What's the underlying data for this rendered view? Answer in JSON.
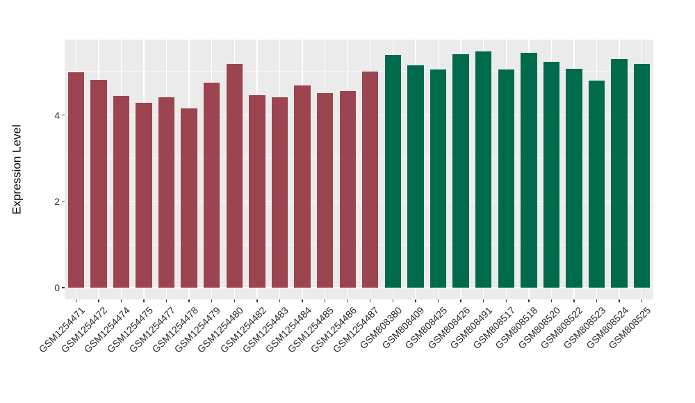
{
  "chart_data": {
    "type": "bar",
    "title": "",
    "xlabel": "",
    "ylabel": "Expression Level",
    "ylim": [
      0,
      5.75
    ],
    "yticks": [
      0,
      2,
      4
    ],
    "yticks_minor": [
      1,
      3,
      5
    ],
    "grid": true,
    "legend_position": "none",
    "panel_background": "#EBEBEB",
    "gridline_color": "#FFFFFF",
    "tick_color": "#333333",
    "group_colors": {
      "left_group": "#9C4450",
      "right_group": "#006A4C"
    },
    "categories": [
      "GSM1254471",
      "GSM1254472",
      "GSM1254474",
      "GSM1254475",
      "GSM1254477",
      "GSM1254478",
      "GSM1254479",
      "GSM1254480",
      "GSM1254482",
      "GSM1254483",
      "GSM1254484",
      "GSM1254485",
      "GSM1254486",
      "GSM1254487",
      "GSM808380",
      "GSM808409",
      "GSM808425",
      "GSM808426",
      "GSM808491",
      "GSM808517",
      "GSM808518",
      "GSM808520",
      "GSM808522",
      "GSM808523",
      "GSM808524",
      "GSM808525"
    ],
    "values": [
      4.99,
      4.81,
      4.44,
      4.28,
      4.41,
      4.15,
      4.75,
      5.19,
      4.46,
      4.42,
      4.69,
      4.51,
      4.56,
      5.01,
      5.4,
      5.16,
      5.06,
      5.41,
      5.47,
      5.06,
      5.44,
      5.23,
      5.07,
      4.8,
      5.3,
      5.19
    ],
    "bar_groups": [
      "left_group",
      "left_group",
      "left_group",
      "left_group",
      "left_group",
      "left_group",
      "left_group",
      "left_group",
      "left_group",
      "left_group",
      "left_group",
      "left_group",
      "left_group",
      "left_group",
      "right_group",
      "right_group",
      "right_group",
      "right_group",
      "right_group",
      "right_group",
      "right_group",
      "right_group",
      "right_group",
      "right_group",
      "right_group",
      "right_group"
    ]
  }
}
